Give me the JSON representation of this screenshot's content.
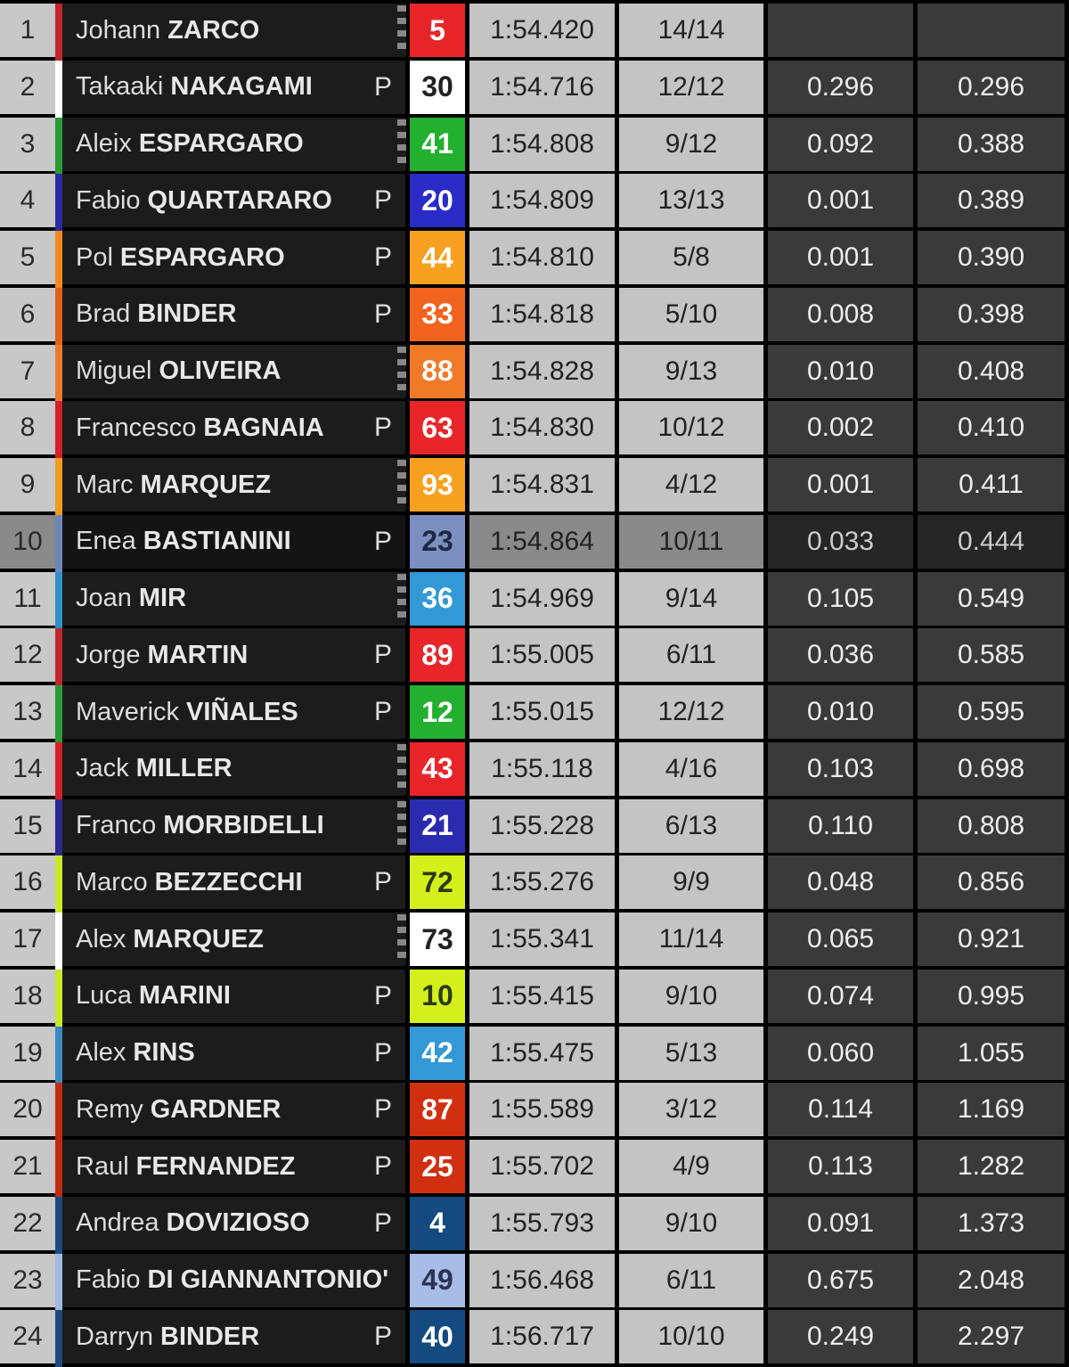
{
  "rows": [
    {
      "pos": "1",
      "first": "Johann",
      "last": "ZARCO",
      "flag": "checker",
      "num": "5",
      "color": "#e8262a",
      "text": "#fff",
      "stripe": "#c0262d",
      "time": "1:54.420",
      "laps": "14/14",
      "gap": "",
      "gap_first": ""
    },
    {
      "pos": "2",
      "first": "Takaaki",
      "last": "NAKAGAMI",
      "flag": "P",
      "num": "30",
      "color": "#ffffff",
      "text": "#222",
      "stripe": "#ffffff",
      "time": "1:54.716",
      "laps": "12/12",
      "gap": "0.296",
      "gap_first": "0.296"
    },
    {
      "pos": "3",
      "first": "Aleix",
      "last": "ESPARGARO",
      "flag": "checker",
      "num": "41",
      "color": "#22b02e",
      "text": "#fff",
      "stripe": "#2a9a35",
      "time": "1:54.808",
      "laps": "9/12",
      "gap": "0.092",
      "gap_first": "0.388"
    },
    {
      "pos": "4",
      "first": "Fabio",
      "last": "QUARTARARO",
      "flag": "P",
      "num": "20",
      "color": "#2b2bc8",
      "text": "#fff",
      "stripe": "#2a2aa0",
      "time": "1:54.809",
      "laps": "13/13",
      "gap": "0.001",
      "gap_first": "0.389"
    },
    {
      "pos": "5",
      "first": "Pol",
      "last": "ESPARGARO",
      "flag": "P",
      "num": "44",
      "color": "#f8a020",
      "text": "#fff",
      "stripe": "#f08a20",
      "time": "1:54.810",
      "laps": "5/8",
      "gap": "0.001",
      "gap_first": "0.390"
    },
    {
      "pos": "6",
      "first": "Brad",
      "last": "BINDER",
      "flag": "P",
      "num": "33",
      "color": "#f06420",
      "text": "#fff",
      "stripe": "#e0601e",
      "time": "1:54.818",
      "laps": "5/10",
      "gap": "0.008",
      "gap_first": "0.398"
    },
    {
      "pos": "7",
      "first": "Miguel",
      "last": "OLIVEIRA",
      "flag": "checker",
      "num": "88",
      "color": "#f07a28",
      "text": "#fff",
      "stripe": "#e87a30",
      "time": "1:54.828",
      "laps": "9/13",
      "gap": "0.010",
      "gap_first": "0.408"
    },
    {
      "pos": "8",
      "first": "Francesco",
      "last": "BAGNAIA",
      "flag": "P",
      "num": "63",
      "color": "#e8262a",
      "text": "#fff",
      "stripe": "#d0202a",
      "time": "1:54.830",
      "laps": "10/12",
      "gap": "0.002",
      "gap_first": "0.410"
    },
    {
      "pos": "9",
      "first": "Marc",
      "last": "MARQUEZ",
      "flag": "checker",
      "num": "93",
      "color": "#f8a020",
      "text": "#fff",
      "stripe": "#f09a20",
      "time": "1:54.831",
      "laps": "4/12",
      "gap": "0.001",
      "gap_first": "0.411"
    },
    {
      "pos": "10",
      "first": "Enea",
      "last": "BASTIANINI",
      "flag": "P",
      "num": "23",
      "color": "#7d8fc0",
      "text": "#1e2a44",
      "stripe": "#6a88b8",
      "time": "1:54.864",
      "laps": "10/11",
      "gap": "0.033",
      "gap_first": "0.444",
      "highlight": true
    },
    {
      "pos": "11",
      "first": "Joan",
      "last": "MIR",
      "flag": "checker",
      "num": "36",
      "color": "#3399d6",
      "text": "#fff",
      "stripe": "#3090c8",
      "time": "1:54.969",
      "laps": "9/14",
      "gap": "0.105",
      "gap_first": "0.549"
    },
    {
      "pos": "12",
      "first": "Jorge",
      "last": "MARTIN",
      "flag": "P",
      "num": "89",
      "color": "#e8262a",
      "text": "#fff",
      "stripe": "#c0262d",
      "time": "1:55.005",
      "laps": "6/11",
      "gap": "0.036",
      "gap_first": "0.585"
    },
    {
      "pos": "13",
      "first": "Maverick",
      "last": "VIÑALES",
      "flag": "P",
      "num": "12",
      "color": "#22b02e",
      "text": "#fff",
      "stripe": "#2a9a35",
      "time": "1:55.015",
      "laps": "12/12",
      "gap": "0.010",
      "gap_first": "0.595"
    },
    {
      "pos": "14",
      "first": "Jack",
      "last": "MILLER",
      "flag": "checker",
      "num": "43",
      "color": "#e8262a",
      "text": "#fff",
      "stripe": "#d0202a",
      "time": "1:55.118",
      "laps": "4/16",
      "gap": "0.103",
      "gap_first": "0.698"
    },
    {
      "pos": "15",
      "first": "Franco",
      "last": "MORBIDELLI",
      "flag": "checker",
      "num": "21",
      "color": "#2b2bb0",
      "text": "#fff",
      "stripe": "#2a2a90",
      "time": "1:55.228",
      "laps": "6/13",
      "gap": "0.110",
      "gap_first": "0.808"
    },
    {
      "pos": "16",
      "first": "Marco",
      "last": "BEZZECCHI",
      "flag": "P",
      "num": "72",
      "color": "#d4f01c",
      "text": "#2a3a10",
      "stripe": "#c8e82a",
      "time": "1:55.276",
      "laps": "9/9",
      "gap": "0.048",
      "gap_first": "0.856"
    },
    {
      "pos": "17",
      "first": "Alex",
      "last": "MARQUEZ",
      "flag": "checker",
      "num": "73",
      "color": "#ffffff",
      "text": "#222",
      "stripe": "#ffffff",
      "time": "1:55.341",
      "laps": "11/14",
      "gap": "0.065",
      "gap_first": "0.921"
    },
    {
      "pos": "18",
      "first": "Luca",
      "last": "MARINI",
      "flag": "P",
      "num": "10",
      "color": "#d4f01c",
      "text": "#2a3a10",
      "stripe": "#c8e82a",
      "time": "1:55.415",
      "laps": "9/10",
      "gap": "0.074",
      "gap_first": "0.995"
    },
    {
      "pos": "19",
      "first": "Alex",
      "last": "RINS",
      "flag": "P",
      "num": "42",
      "color": "#3399d6",
      "text": "#fff",
      "stripe": "#3a8ac0",
      "time": "1:55.475",
      "laps": "5/13",
      "gap": "0.060",
      "gap_first": "1.055"
    },
    {
      "pos": "20",
      "first": "Remy",
      "last": "GARDNER",
      "flag": "P",
      "num": "87",
      "color": "#d03010",
      "text": "#fff",
      "stripe": "#c02a10",
      "time": "1:55.589",
      "laps": "3/12",
      "gap": "0.114",
      "gap_first": "1.169"
    },
    {
      "pos": "21",
      "first": "Raul",
      "last": "FERNANDEZ",
      "flag": "P",
      "num": "25",
      "color": "#d03010",
      "text": "#fff",
      "stripe": "#c02a10",
      "time": "1:55.702",
      "laps": "4/9",
      "gap": "0.113",
      "gap_first": "1.282"
    },
    {
      "pos": "22",
      "first": "Andrea",
      "last": "DOVIZIOSO",
      "flag": "P",
      "num": "4",
      "color": "#144a80",
      "text": "#fff",
      "stripe": "#1a4a80",
      "time": "1:55.793",
      "laps": "9/10",
      "gap": "0.091",
      "gap_first": "1.373"
    },
    {
      "pos": "23",
      "first": "Fabio",
      "last": "DI GIANNANTONIO'",
      "flag": "none",
      "num": "49",
      "color": "#a8bce8",
      "text": "#2a3450",
      "stripe": "#a0b8e0",
      "time": "1:56.468",
      "laps": "6/11",
      "gap": "0.675",
      "gap_first": "2.048"
    },
    {
      "pos": "24",
      "first": "Darryn",
      "last": "BINDER",
      "flag": "P",
      "num": "40",
      "color": "#144a80",
      "text": "#fff",
      "stripe": "#1a4a80",
      "time": "1:56.717",
      "laps": "10/10",
      "gap": "0.249",
      "gap_first": "2.297"
    }
  ]
}
